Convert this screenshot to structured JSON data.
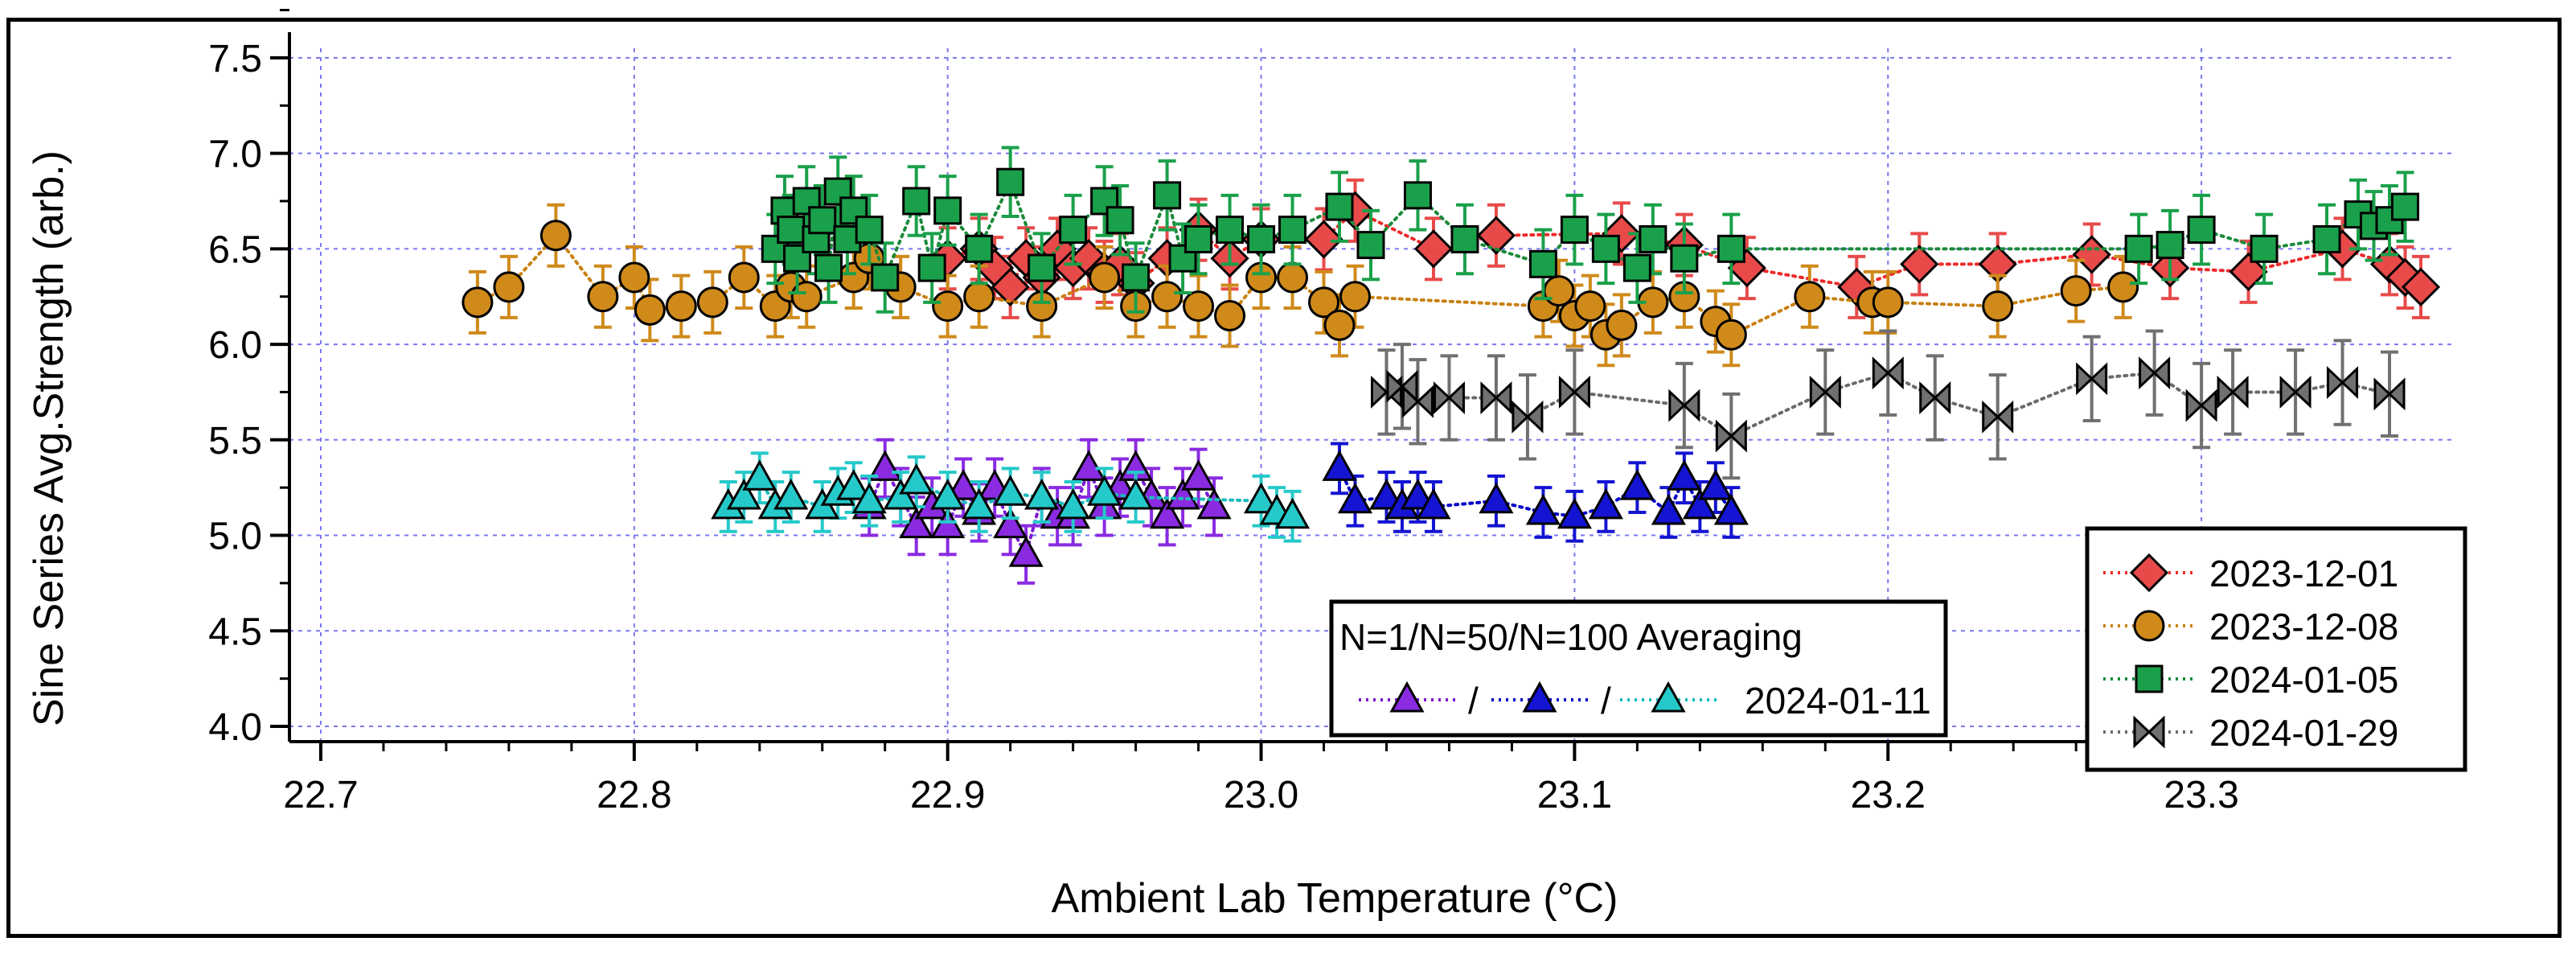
{
  "chart_data": {
    "type": "scatter",
    "title": "",
    "xlabel": "Ambient Lab Temperature (°C)",
    "ylabel": "Sine Series Avg.Strength (arb.)",
    "xlim": [
      22.69,
      23.38
    ],
    "ylim": [
      3.92,
      7.55
    ],
    "xticks": [
      "22.7",
      "22.8",
      "22.9",
      "23.0",
      "23.1",
      "23.2",
      "23.3"
    ],
    "yticks": [
      "4.0",
      "4.5",
      "5.0",
      "5.5",
      "6.0",
      "6.5",
      "7.0",
      "7.5"
    ],
    "grid": true,
    "legend_position": "bottom-right",
    "series": [
      {
        "name": "2023-12-01",
        "color": "#e84a4a",
        "line": "#ee2a2a",
        "marker": "diamond",
        "err": 0.16,
        "x": [
          22.9,
          22.91,
          22.915,
          22.92,
          22.925,
          22.93,
          22.935,
          22.94,
          22.945,
          22.95,
          22.955,
          22.96,
          22.97,
          22.98,
          22.99,
          23.0,
          23.02,
          23.03,
          23.055,
          23.075,
          23.115,
          23.135,
          23.155,
          23.19,
          23.21,
          23.235,
          23.265,
          23.29,
          23.315,
          23.345,
          23.36,
          23.365,
          23.37
        ],
        "y": [
          6.45,
          6.5,
          6.4,
          6.3,
          6.45,
          6.35,
          6.5,
          6.4,
          6.45,
          6.38,
          6.42,
          6.32,
          6.45,
          6.6,
          6.45,
          6.55,
          6.55,
          6.7,
          6.5,
          6.57,
          6.58,
          6.52,
          6.4,
          6.3,
          6.42,
          6.42,
          6.47,
          6.4,
          6.38,
          6.5,
          6.42,
          6.35,
          6.3
        ]
      },
      {
        "name": "2023-12-08",
        "color": "#cf8a1a",
        "line": "#c88010",
        "marker": "circle",
        "err": 0.16,
        "x": [
          22.75,
          22.76,
          22.775,
          22.79,
          22.8,
          22.805,
          22.815,
          22.825,
          22.835,
          22.845,
          22.85,
          22.855,
          22.87,
          22.875,
          22.885,
          22.9,
          22.91,
          22.93,
          22.95,
          22.96,
          22.97,
          22.98,
          22.99,
          23.0,
          23.01,
          23.02,
          23.025,
          23.03,
          23.09,
          23.095,
          23.1,
          23.105,
          23.11,
          23.115,
          23.125,
          23.135,
          23.145,
          23.15,
          23.175,
          23.195,
          23.2,
          23.235,
          23.26,
          23.275
        ],
        "y": [
          6.22,
          6.3,
          6.57,
          6.25,
          6.35,
          6.18,
          6.2,
          6.22,
          6.35,
          6.2,
          6.3,
          6.25,
          6.35,
          6.45,
          6.3,
          6.2,
          6.25,
          6.2,
          6.35,
          6.2,
          6.25,
          6.2,
          6.15,
          6.35,
          6.35,
          6.22,
          6.1,
          6.25,
          6.2,
          6.28,
          6.15,
          6.2,
          6.05,
          6.1,
          6.22,
          6.25,
          6.12,
          6.05,
          6.25,
          6.22,
          6.22,
          6.2,
          6.28,
          6.3
        ]
      },
      {
        "name": "2024-01-05",
        "color": "#1aa04a",
        "line": "#1a8a3a",
        "marker": "square",
        "err": 0.18,
        "x": [
          22.845,
          22.848,
          22.85,
          22.852,
          22.855,
          22.858,
          22.86,
          22.862,
          22.865,
          22.868,
          22.87,
          22.875,
          22.88,
          22.89,
          22.895,
          22.9,
          22.91,
          22.92,
          22.93,
          22.94,
          22.95,
          22.955,
          22.96,
          22.97,
          22.975,
          22.98,
          22.99,
          23.0,
          23.01,
          23.025,
          23.035,
          23.05,
          23.065,
          23.09,
          23.1,
          23.11,
          23.12,
          23.125,
          23.135,
          23.15,
          23.28,
          23.29,
          23.3,
          23.32,
          23.34,
          23.35,
          23.355,
          23.36,
          23.365
        ],
        "y": [
          6.5,
          6.7,
          6.6,
          6.45,
          6.75,
          6.55,
          6.65,
          6.4,
          6.8,
          6.55,
          6.7,
          6.6,
          6.35,
          6.75,
          6.4,
          6.7,
          6.5,
          6.85,
          6.4,
          6.6,
          6.75,
          6.65,
          6.35,
          6.78,
          6.45,
          6.55,
          6.6,
          6.55,
          6.6,
          6.72,
          6.52,
          6.78,
          6.55,
          6.42,
          6.6,
          6.5,
          6.4,
          6.55,
          6.45,
          6.5,
          6.5,
          6.52,
          6.6,
          6.5,
          6.55,
          6.68,
          6.62,
          6.65,
          6.72
        ]
      },
      {
        "name": "2024-01-29",
        "color": "#707070",
        "line": "#6a6a6a",
        "marker": "bowtie",
        "err": 0.22,
        "x": [
          23.04,
          23.045,
          23.05,
          23.06,
          23.075,
          23.085,
          23.1,
          23.135,
          23.15,
          23.18,
          23.2,
          23.215,
          23.235,
          23.265,
          23.285,
          23.3,
          23.31,
          23.33,
          23.345,
          23.36
        ],
        "y": [
          5.75,
          5.78,
          5.7,
          5.72,
          5.72,
          5.62,
          5.75,
          5.68,
          5.52,
          5.75,
          5.85,
          5.72,
          5.62,
          5.82,
          5.85,
          5.68,
          5.75,
          5.75,
          5.8,
          5.74
        ]
      },
      {
        "name": "N=1",
        "color": "#8a2be2",
        "line": "#7a1ad2",
        "marker": "triangle",
        "err": 0.15,
        "x": [
          22.875,
          22.88,
          22.885,
          22.89,
          22.895,
          22.9,
          22.905,
          22.91,
          22.915,
          22.92,
          22.925,
          22.93,
          22.935,
          22.94,
          22.945,
          22.95,
          22.955,
          22.96,
          22.965,
          22.97,
          22.975,
          22.98,
          22.985
        ],
        "y": [
          5.15,
          5.35,
          5.2,
          5.05,
          5.15,
          5.05,
          5.25,
          5.12,
          5.25,
          5.05,
          4.9,
          5.2,
          5.1,
          5.1,
          5.35,
          5.15,
          5.25,
          5.35,
          5.2,
          5.1,
          5.2,
          5.3,
          5.15
        ]
      },
      {
        "name": "N=50",
        "color": "#1414d2",
        "line": "#0000c8",
        "marker": "triangle",
        "err": 0.13,
        "x": [
          23.025,
          23.03,
          23.04,
          23.045,
          23.05,
          23.055,
          23.075,
          23.09,
          23.1,
          23.11,
          23.12,
          23.13,
          23.135,
          23.14,
          23.145,
          23.15
        ],
        "y": [
          5.35,
          5.18,
          5.2,
          5.15,
          5.2,
          5.15,
          5.18,
          5.12,
          5.1,
          5.15,
          5.25,
          5.12,
          5.3,
          5.15,
          5.25,
          5.12
        ]
      },
      {
        "name": "N=100",
        "color": "#26c9c9",
        "line": "#18bcbc",
        "marker": "triangle",
        "err": 0.13,
        "x": [
          22.83,
          22.835,
          22.84,
          22.845,
          22.85,
          22.86,
          22.865,
          22.87,
          22.875,
          22.885,
          22.89,
          22.9,
          22.91,
          22.92,
          22.93,
          22.94,
          22.95,
          22.96,
          23.0,
          23.005,
          23.01
        ],
        "y": [
          5.15,
          5.2,
          5.3,
          5.15,
          5.2,
          5.15,
          5.22,
          5.25,
          5.18,
          5.2,
          5.28,
          5.2,
          5.15,
          5.22,
          5.2,
          5.15,
          5.22,
          5.2,
          5.18,
          5.12,
          5.1
        ]
      }
    ],
    "legend": {
      "entries": [
        "2023-12-01",
        "2023-12-08",
        "2024-01-05",
        "2024-01-29"
      ]
    },
    "legend2": {
      "title": "N=1/N=50/N=100 Averaging",
      "separator": "/",
      "label": "2024-01-11"
    }
  }
}
